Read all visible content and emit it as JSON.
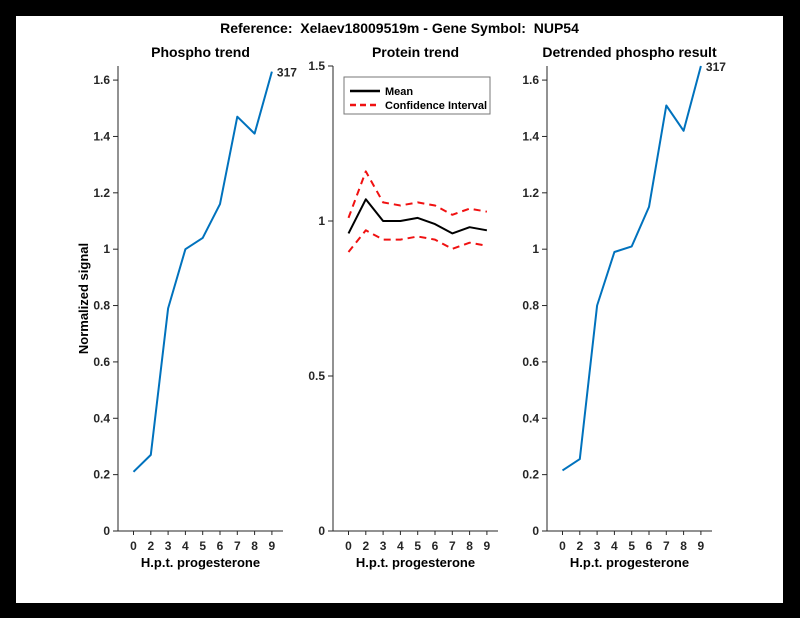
{
  "figure": {
    "title": "Reference:  Xelaev18009519m - Gene Symbol:  NUP54"
  },
  "colors": {
    "blue": "#0072BD",
    "red": "#F01111",
    "black": "#000000",
    "axis": "#262626"
  },
  "chart_data": [
    {
      "type": "line",
      "title": "Phospho trend",
      "xlabel": "H.p.t. progesterone",
      "ylabel": "Normalized signal",
      "x_tick_labels": [
        "0",
        "2",
        "3",
        "4",
        "5",
        "6",
        "7",
        "8",
        "9"
      ],
      "y_ticks": [
        0,
        0.2,
        0.4,
        0.6,
        0.8,
        1,
        1.2,
        1.4,
        1.6
      ],
      "y_tick_labels": [
        "0",
        "0.2",
        "0.4",
        "0.6",
        "0.8",
        "1",
        "1.2",
        "1.4",
        "1.6"
      ],
      "ylim": [
        0,
        1.65
      ],
      "grid": false,
      "series": [
        {
          "name": "phospho-signal",
          "color_key": "blue",
          "dash": false,
          "values": [
            0.21,
            0.27,
            0.79,
            1.0,
            1.04,
            1.16,
            1.47,
            1.41,
            1.63
          ]
        }
      ],
      "end_label": "317"
    },
    {
      "type": "line",
      "title": "Protein trend",
      "xlabel": "H.p.t. progesterone",
      "ylabel": "",
      "x_tick_labels": [
        "0",
        "2",
        "3",
        "4",
        "5",
        "6",
        "7",
        "8",
        "9"
      ],
      "y_ticks": [
        0,
        0.5,
        1,
        1.5
      ],
      "y_tick_labels": [
        "0",
        "0.5",
        "1",
        "1.5"
      ],
      "ylim": [
        0,
        1.5
      ],
      "grid": false,
      "series": [
        {
          "name": "mean",
          "color_key": "black",
          "dash": false,
          "values": [
            0.96,
            1.07,
            1.0,
            1.0,
            1.01,
            0.99,
            0.96,
            0.98,
            0.97
          ]
        },
        {
          "name": "ci-upper",
          "color_key": "red",
          "dash": true,
          "values": [
            1.01,
            1.16,
            1.06,
            1.05,
            1.06,
            1.05,
            1.02,
            1.04,
            1.03
          ]
        },
        {
          "name": "ci-lower",
          "color_key": "red",
          "dash": true,
          "values": [
            0.9,
            0.97,
            0.94,
            0.94,
            0.95,
            0.94,
            0.91,
            0.93,
            0.92
          ]
        }
      ],
      "legend": {
        "position": "top-left",
        "entries": [
          {
            "label": "Mean",
            "color_key": "black",
            "dash": false
          },
          {
            "label": "Confidence Interval",
            "color_key": "red",
            "dash": true
          }
        ]
      }
    },
    {
      "type": "line",
      "title": "Detrended phospho result",
      "xlabel": "H.p.t. progesterone",
      "ylabel": "",
      "x_tick_labels": [
        "0",
        "2",
        "3",
        "4",
        "5",
        "6",
        "7",
        "8",
        "9"
      ],
      "y_ticks": [
        0,
        0.2,
        0.4,
        0.6,
        0.8,
        1,
        1.2,
        1.4,
        1.6
      ],
      "y_tick_labels": [
        "0",
        "0.2",
        "0.4",
        "0.6",
        "0.8",
        "1",
        "1.2",
        "1.4",
        "1.6"
      ],
      "ylim": [
        0,
        1.65
      ],
      "grid": false,
      "series": [
        {
          "name": "detrended-phospho-signal",
          "color_key": "blue",
          "dash": false,
          "values": [
            0.215,
            0.255,
            0.8,
            0.99,
            1.01,
            1.15,
            1.51,
            1.42,
            1.65
          ]
        }
      ],
      "end_label": "317"
    }
  ]
}
